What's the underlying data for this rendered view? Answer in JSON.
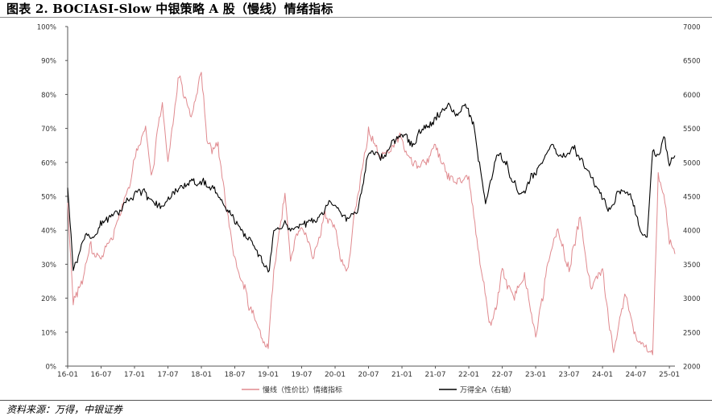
{
  "title": "图表 2. BOCIASI-Slow 中银策略 A 股（慢线）情绪指标",
  "source": "资料来源：万得，中银证券",
  "chart_data": {
    "type": "line",
    "x_ticks": [
      "16-01",
      "16-07",
      "17-01",
      "17-07",
      "18-01",
      "18-07",
      "19-01",
      "19-07",
      "20-01",
      "20-07",
      "21-01",
      "21-07",
      "22-01",
      "22-07",
      "23-01",
      "23-07",
      "24-01",
      "24-07",
      "25-01"
    ],
    "y_left": {
      "ticks": [
        "0%",
        "10%",
        "20%",
        "30%",
        "40%",
        "50%",
        "60%",
        "70%",
        "80%",
        "90%",
        "100%"
      ],
      "ylim": [
        0,
        100
      ]
    },
    "y_right": {
      "ticks": [
        "2000",
        "2500",
        "3000",
        "3500",
        "4000",
        "4500",
        "5000",
        "5500",
        "6000",
        "6500",
        "7000"
      ],
      "ylim": [
        2000,
        7000
      ]
    },
    "grid": false,
    "legend_position": "bottom",
    "series": [
      {
        "name": "慢线（性价比）情绪指标",
        "axis": "left",
        "color": "#e08a8f",
        "x": [
          "2016-01",
          "2016-02",
          "2016-04",
          "2016-05",
          "2016-07",
          "2016-09",
          "2016-11",
          "2017-01",
          "2017-03",
          "2017-04",
          "2017-06",
          "2017-07",
          "2017-09",
          "2017-11",
          "2018-01",
          "2018-02",
          "2018-04",
          "2018-06",
          "2018-07",
          "2018-09",
          "2018-11",
          "2019-01",
          "2019-02",
          "2019-04",
          "2019-05",
          "2019-07",
          "2019-09",
          "2019-11",
          "2020-01",
          "2020-03",
          "2020-05",
          "2020-07",
          "2020-09",
          "2020-11",
          "2021-01",
          "2021-03",
          "2021-05",
          "2021-07",
          "2021-09",
          "2021-11",
          "2022-01",
          "2022-03",
          "2022-05",
          "2022-07",
          "2022-09",
          "2022-11",
          "2023-01",
          "2023-03",
          "2023-05",
          "2023-07",
          "2023-09",
          "2023-11",
          "2024-01",
          "2024-03",
          "2024-05",
          "2024-07",
          "2024-09",
          "2024-10",
          "2024-11",
          "2024-12",
          "2025-01",
          "2025-02"
        ],
        "values": [
          48,
          19,
          28,
          35,
          30,
          38,
          48,
          60,
          72,
          58,
          78,
          62,
          86,
          72,
          88,
          68,
          64,
          40,
          30,
          20,
          12,
          5,
          28,
          52,
          32,
          40,
          30,
          44,
          40,
          28,
          50,
          70,
          60,
          65,
          66,
          62,
          58,
          64,
          56,
          54,
          57,
          30,
          10,
          28,
          20,
          25,
          8,
          30,
          40,
          28,
          44,
          22,
          28,
          2,
          20,
          10,
          3,
          2,
          55,
          50,
          35,
          33
        ]
      },
      {
        "name": "万得全A（右轴）",
        "axis": "right",
        "color": "#000000",
        "x": [
          "2016-01",
          "2016-02",
          "2016-04",
          "2016-06",
          "2016-08",
          "2016-10",
          "2016-12",
          "2017-02",
          "2017-04",
          "2017-06",
          "2017-08",
          "2017-10",
          "2017-12",
          "2018-01",
          "2018-03",
          "2018-05",
          "2018-07",
          "2018-09",
          "2018-11",
          "2019-01",
          "2019-02",
          "2019-04",
          "2019-05",
          "2019-07",
          "2019-09",
          "2019-11",
          "2020-01",
          "2020-03",
          "2020-05",
          "2020-07",
          "2020-09",
          "2020-11",
          "2021-01",
          "2021-03",
          "2021-05",
          "2021-07",
          "2021-09",
          "2021-11",
          "2021-12",
          "2022-02",
          "2022-04",
          "2022-06",
          "2022-08",
          "2022-10",
          "2022-12",
          "2023-02",
          "2023-04",
          "2023-06",
          "2023-08",
          "2023-10",
          "2023-12",
          "2024-02",
          "2024-04",
          "2024-06",
          "2024-08",
          "2024-09",
          "2024-10",
          "2024-11",
          "2024-12",
          "2025-01",
          "2025-02"
        ],
        "values": [
          4600,
          3400,
          3800,
          3900,
          4200,
          4300,
          4400,
          4600,
          4400,
          4300,
          4500,
          4650,
          4700,
          4700,
          4600,
          4400,
          4100,
          3900,
          3700,
          3300,
          3900,
          4100,
          3950,
          4100,
          4100,
          4250,
          4400,
          4100,
          4250,
          5100,
          5050,
          5200,
          5450,
          5300,
          5500,
          5650,
          5900,
          5800,
          5950,
          5500,
          4400,
          5100,
          4950,
          4550,
          4700,
          5050,
          5250,
          5100,
          5200,
          4900,
          4700,
          4300,
          4600,
          4500,
          3900,
          3850,
          5150,
          5100,
          5400,
          4950,
          5100
        ]
      }
    ]
  }
}
